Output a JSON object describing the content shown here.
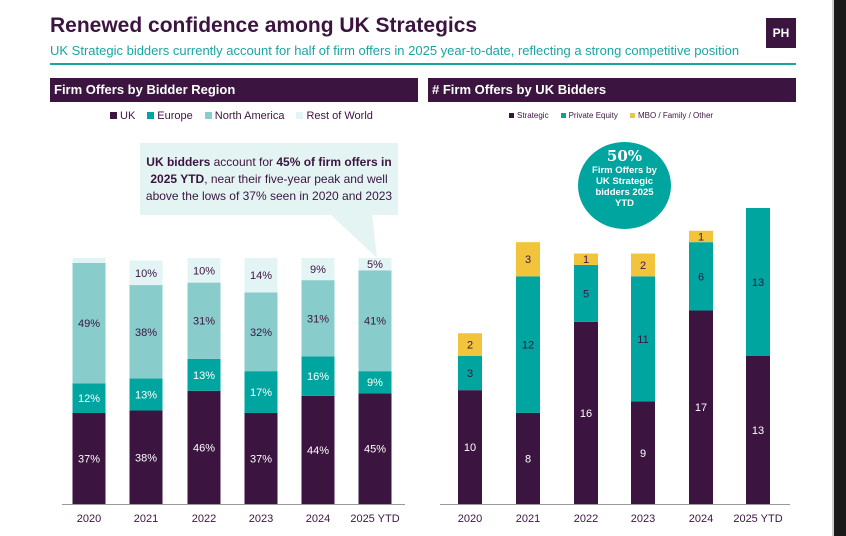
{
  "header": {
    "title": "Renewed confidence among UK Strategics",
    "subtitle": "UK Strategic bidders currently account for half of firm offers in 2025 year-to-date, reflecting a strong competitive position",
    "logo": "PH"
  },
  "colors": {
    "purple": "#3b1540",
    "teal": "#00a59f",
    "light_teal": "#88cccc",
    "pale": "#e3f4f4",
    "yellow": "#f2c43c"
  },
  "callout": {
    "bold1": "UK bidders",
    "t1": " account for ",
    "bold2": "45% of firm offers in 2025 YTD",
    "t2": ", near their five-year peak and well above the lows of 37% seen in 2020 and 2023"
  },
  "badge": {
    "value": "50%",
    "label": "Firm Offers by UK Strategic bidders 2025 YTD"
  },
  "chart_data": [
    {
      "type": "bar",
      "stacked": true,
      "title": "Firm Offers by Bidder Region",
      "categories": [
        "2020",
        "2021",
        "2022",
        "2023",
        "2024",
        "2025 YTD"
      ],
      "unit": "%",
      "ylim": [
        0,
        100
      ],
      "legend": "top",
      "series": [
        {
          "name": "UK",
          "color": "#3b1540",
          "values": [
            37,
            38,
            46,
            37,
            44,
            45
          ],
          "labels": [
            "37%",
            "38%",
            "46%",
            "37%",
            "44%",
            "45%"
          ]
        },
        {
          "name": "Europe",
          "color": "#00a59f",
          "values": [
            12,
            13,
            13,
            17,
            16,
            9
          ],
          "labels": [
            "12%",
            "13%",
            "13%",
            "17%",
            "16%",
            "9%"
          ]
        },
        {
          "name": "North America",
          "color": "#88cccc",
          "values": [
            49,
            38,
            31,
            32,
            31,
            41
          ],
          "labels": [
            "49%",
            "38%",
            "31%",
            "32%",
            "31%",
            "41%"
          ]
        },
        {
          "name": "Rest of World",
          "color": "#e3f4f4",
          "values": [
            2,
            10,
            10,
            14,
            9,
            5
          ],
          "labels": [
            "",
            "10%",
            "10%",
            "14%",
            "9%",
            "5%"
          ]
        }
      ]
    },
    {
      "type": "bar",
      "stacked": true,
      "title": "# Firm Offers by UK Bidders",
      "categories": [
        "2020",
        "2021",
        "2022",
        "2023",
        "2024",
        "2025 YTD"
      ],
      "legend": "top",
      "series": [
        {
          "name": "Strategic",
          "color": "#3b1540",
          "values": [
            10,
            8,
            16,
            9,
            17,
            13
          ]
        },
        {
          "name": "Private Equity",
          "color": "#00a59f",
          "values": [
            3,
            12,
            5,
            11,
            6,
            13
          ]
        },
        {
          "name": "MBO / Family / Other",
          "color": "#f2c43c",
          "values": [
            2,
            3,
            1,
            2,
            1,
            0
          ]
        }
      ]
    }
  ]
}
